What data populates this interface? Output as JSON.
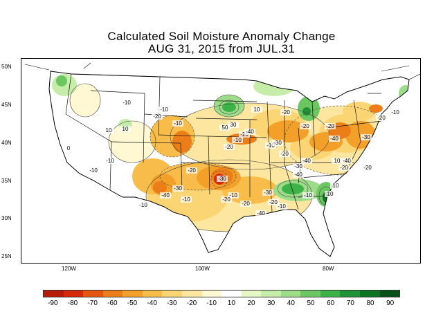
{
  "title": {
    "line1": "Calculated Soil Moisture Anomaly Change",
    "line2": "AUG 31, 2015 from JUL.31"
  },
  "lat_labels": [
    "50N",
    "45N",
    "40N",
    "35N",
    "30N",
    "25N"
  ],
  "lon_labels": [
    "120W",
    "100W",
    "80W"
  ],
  "legend": {
    "colors": [
      "#b51c05",
      "#d42a0a",
      "#e4560f",
      "#ec7e1a",
      "#f3a02a",
      "#f8bc4a",
      "#fbd474",
      "#fde7a0",
      "#fff8d2",
      "#ffffff",
      "#e6f7c8",
      "#c6ecaa",
      "#9ddc88",
      "#6cc763",
      "#3db247",
      "#1f9236",
      "#0d7426",
      "#06501a"
    ],
    "labels": [
      "-90",
      "-80",
      "-70",
      "-60",
      "-50",
      "-40",
      "-30",
      "-20",
      "-10",
      "10",
      "20",
      "30",
      "40",
      "50",
      "60",
      "70",
      "80",
      "90"
    ]
  },
  "contour_labels": [
    "-10",
    "-10",
    "-20",
    "-10",
    "10",
    "10",
    "-10",
    "0",
    "-10",
    "-10",
    "-20",
    "30",
    "10",
    "-10",
    "50",
    "-20",
    "-40",
    "-20",
    "-10",
    "-20",
    "-30",
    "-30",
    "-30",
    "-40",
    "-20",
    "-20",
    "-20",
    "-40",
    "-40",
    "-10",
    "10",
    "-10",
    "-20",
    "-30",
    "-40",
    "-10",
    "-20",
    "-20",
    "-10",
    "10",
    "10",
    "-30",
    "-20",
    "-20",
    "-30",
    "-40",
    "-40",
    "-20",
    "-10"
  ]
}
